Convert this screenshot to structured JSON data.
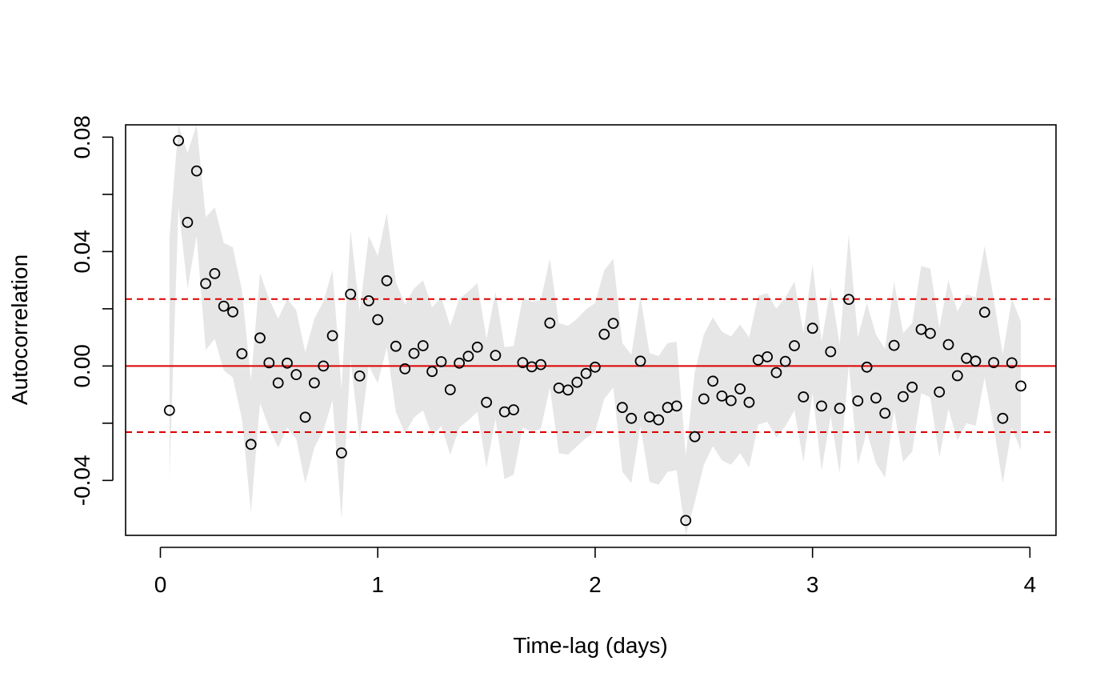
{
  "chart_data": {
    "type": "scatter",
    "title": "",
    "xlabel": "Time-lag (days)",
    "ylabel": "Autocorrelation",
    "xlim": [
      -0.16,
      4.12
    ],
    "ylim": [
      -0.0592,
      0.0843
    ],
    "x_ticks": [
      0,
      1,
      2,
      3,
      4
    ],
    "x_tick_labels": [
      "0",
      "1",
      "2",
      "3",
      "4"
    ],
    "y_ticks": [
      -0.04,
      0.0,
      0.04,
      0.08
    ],
    "y_tick_labels": [
      "-0.04",
      "0.00",
      "0.04",
      "0.08"
    ],
    "grid": false,
    "legend": "none",
    "colors": {
      "points": "#000000",
      "zero_line": "#dd0000",
      "bound_lines": "#dd0000",
      "band": "#e6e6e6"
    },
    "reference_lines": {
      "zero": 0.0,
      "upper_bound": 0.0234,
      "lower_bound": -0.0231
    },
    "x": [
      0.0417,
      0.0833,
      0.125,
      0.1667,
      0.2083,
      0.25,
      0.2917,
      0.3333,
      0.375,
      0.4167,
      0.4583,
      0.5,
      0.5417,
      0.5833,
      0.625,
      0.6667,
      0.7083,
      0.75,
      0.7917,
      0.8333,
      0.875,
      0.9167,
      0.9583,
      1.0,
      1.0417,
      1.0833,
      1.125,
      1.1667,
      1.2083,
      1.25,
      1.2917,
      1.3333,
      1.375,
      1.4167,
      1.4583,
      1.5,
      1.5417,
      1.5833,
      1.625,
      1.6667,
      1.7083,
      1.75,
      1.7917,
      1.8333,
      1.875,
      1.9167,
      1.9583,
      2.0,
      2.0417,
      2.0833,
      2.125,
      2.1667,
      2.2083,
      2.25,
      2.2917,
      2.3333,
      2.375,
      2.4167,
      2.4583,
      2.5,
      2.5417,
      2.5833,
      2.625,
      2.6667,
      2.7083,
      2.75,
      2.7917,
      2.8333,
      2.875,
      2.9167,
      2.9583,
      3.0,
      3.0417,
      3.0833,
      3.125,
      3.1667,
      3.2083,
      3.25,
      3.2917,
      3.3333,
      3.375,
      3.4167,
      3.4583,
      3.5,
      3.5417,
      3.5833,
      3.625,
      3.6667,
      3.7083,
      3.75,
      3.7917,
      3.8333,
      3.875,
      3.9167,
      3.9583
    ],
    "y": [
      -0.0155,
      0.0788,
      0.0502,
      0.0682,
      0.0288,
      0.0323,
      0.0209,
      0.0189,
      0.0043,
      -0.0274,
      0.0098,
      0.0011,
      -0.0059,
      0.001,
      -0.003,
      -0.0179,
      -0.0059,
      0.0,
      0.0106,
      -0.0304,
      0.0251,
      -0.0035,
      0.0228,
      0.0162,
      0.0298,
      0.0069,
      -0.001,
      0.0044,
      0.0071,
      -0.0019,
      0.0015,
      -0.0083,
      0.001,
      0.0034,
      0.0066,
      -0.0127,
      0.0037,
      -0.016,
      -0.0153,
      0.0012,
      -0.0003,
      0.0005,
      0.015,
      -0.0077,
      -0.0084,
      -0.0057,
      -0.0026,
      -0.0004,
      0.0111,
      0.0149,
      -0.0145,
      -0.0183,
      0.0017,
      -0.0178,
      -0.0188,
      -0.0145,
      -0.014,
      -0.054,
      -0.0247,
      -0.0115,
      -0.0053,
      -0.0105,
      -0.0121,
      -0.008,
      -0.0127,
      0.0021,
      0.0032,
      -0.0023,
      0.0016,
      0.0071,
      -0.0108,
      0.0132,
      -0.014,
      0.005,
      -0.0148,
      0.0233,
      -0.0122,
      -0.0004,
      -0.0112,
      -0.0165,
      0.0072,
      -0.0107,
      -0.0074,
      0.0128,
      0.0114,
      -0.0091,
      0.0075,
      -0.0034,
      0.0027,
      0.0017,
      0.0188,
      0.0012,
      -0.0183,
      0.0011,
      -0.007
    ],
    "band": {
      "x": [
        0.0417,
        0.0833,
        0.125,
        0.1667,
        0.2083,
        0.25,
        0.2917,
        0.3333,
        0.375,
        0.4167,
        0.4583,
        0.5,
        0.5417,
        0.5833,
        0.625,
        0.6667,
        0.7083,
        0.75,
        0.7917,
        0.8333,
        0.875,
        0.9167,
        0.9583,
        1.0,
        1.0417,
        1.0833,
        1.125,
        1.1667,
        1.2083,
        1.25,
        1.2917,
        1.3333,
        1.375,
        1.4167,
        1.4583,
        1.5,
        1.5417,
        1.5833,
        1.625,
        1.6667,
        1.7083,
        1.75,
        1.7917,
        1.8333,
        1.875,
        1.9167,
        1.9583,
        2.0,
        2.0417,
        2.0833,
        2.125,
        2.1667,
        2.2083,
        2.25,
        2.2917,
        2.3333,
        2.375,
        2.4167,
        2.4583,
        2.5,
        2.5417,
        2.5833,
        2.625,
        2.6667,
        2.7083,
        2.75,
        2.7917,
        2.8333,
        2.875,
        2.9167,
        2.9583,
        3.0,
        3.0417,
        3.0833,
        3.125,
        3.1667,
        3.2083,
        3.25,
        3.2917,
        3.3333,
        3.375,
        3.4167,
        3.4583,
        3.5,
        3.5417,
        3.5833,
        3.625,
        3.6667,
        3.7083,
        3.75,
        3.7917,
        3.8333,
        3.875,
        3.9167,
        3.9583
      ],
      "upper": [
        0.045,
        0.0843,
        0.0745,
        0.0843,
        0.052,
        0.0555,
        0.043,
        0.0415,
        0.0265,
        -0.005,
        0.0325,
        0.0235,
        0.0165,
        0.0235,
        0.0195,
        0.0048,
        0.0165,
        0.0225,
        0.0335,
        -0.008,
        0.0475,
        0.019,
        0.0455,
        0.0385,
        0.0535,
        0.0295,
        0.0215,
        0.027,
        0.03,
        0.0205,
        0.024,
        0.014,
        0.0235,
        0.026,
        0.029,
        0.0095,
        0.026,
        0.0065,
        0.007,
        0.0238,
        0.0225,
        0.023,
        0.0375,
        0.015,
        0.014,
        0.0165,
        0.0198,
        0.022,
        0.0335,
        0.0375,
        0.008,
        0.004,
        0.0243,
        0.0045,
        0.0035,
        0.008,
        0.0085,
        -0.0315,
        -0.002,
        0.011,
        0.017,
        0.012,
        0.0103,
        0.0145,
        0.01,
        0.0245,
        0.0255,
        0.02,
        0.024,
        0.0295,
        0.0115,
        0.0355,
        0.0085,
        0.0275,
        0.0075,
        0.046,
        0.01,
        0.022,
        0.011,
        0.006,
        0.0295,
        0.0115,
        0.015,
        0.035,
        0.034,
        0.0133,
        0.03,
        0.019,
        0.025,
        0.024,
        0.042,
        0.0237,
        0.004,
        0.0235,
        0.0155
      ],
      "lower": [
        -0.039,
        0.0555,
        0.027,
        0.0455,
        0.0055,
        0.0095,
        -0.0015,
        -0.004,
        -0.0185,
        -0.051,
        -0.013,
        -0.0215,
        -0.0285,
        -0.0215,
        -0.0255,
        -0.041,
        -0.0285,
        -0.0225,
        -0.012,
        -0.0535,
        0.0025,
        -0.026,
        0.0,
        -0.006,
        0.0065,
        -0.016,
        -0.0235,
        -0.018,
        -0.0155,
        -0.0245,
        -0.021,
        -0.031,
        -0.0215,
        -0.019,
        -0.016,
        -0.0355,
        -0.0185,
        -0.0395,
        -0.038,
        -0.0215,
        -0.023,
        -0.022,
        -0.0075,
        -0.0305,
        -0.031,
        -0.028,
        -0.0252,
        -0.023,
        -0.0115,
        -0.0075,
        -0.037,
        -0.041,
        -0.021,
        -0.0405,
        -0.0415,
        -0.037,
        -0.0365,
        -0.0592,
        -0.0475,
        -0.0345,
        -0.028,
        -0.033,
        -0.0345,
        -0.0305,
        -0.0355,
        -0.0205,
        -0.0195,
        -0.025,
        -0.021,
        -0.0155,
        -0.0335,
        -0.0095,
        -0.0365,
        -0.0175,
        -0.0375,
        0.0005,
        -0.0345,
        -0.023,
        -0.034,
        -0.039,
        -0.0155,
        -0.0335,
        -0.03,
        -0.0095,
        -0.011,
        -0.032,
        -0.015,
        -0.026,
        -0.02,
        -0.021,
        -0.004,
        -0.0215,
        -0.041,
        -0.0215,
        -0.0295
      ]
    }
  }
}
